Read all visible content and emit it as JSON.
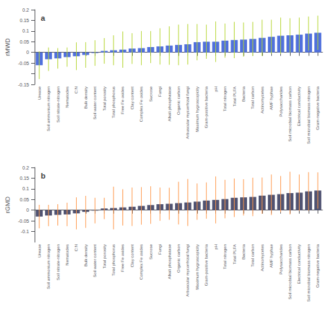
{
  "chart_data": [
    {
      "type": "bar",
      "title": "a",
      "ylabel": "rMWD",
      "categories": [
        "Urease",
        "Soil ammonium nitrogen",
        "Soil nitrate-nitrogen",
        "Nematodes",
        "C:N",
        "Bulk density",
        "Soil water content",
        "Total porosity",
        "Total phosphorus",
        "Free Fe oxides",
        "Clay content",
        "Complex Fe oxides",
        "Sucrose",
        "Fungi",
        "Alkali phosphatase",
        "Organic carbon",
        "Arbuscular mycorrhizal fungi",
        "Maximum hygroscopicity",
        "Gram-positive bacteria",
        "pH",
        "Total nitrogen",
        "Total PLFA",
        "Bacteria",
        "Total carbon",
        "Actinomycetes",
        "AMF hyphae",
        "Polysaccharides",
        "Soil microbial biomass carbon",
        "Electrical conductivity",
        "Soil microbial biomass nitrogen",
        "Gram-negative bacteria"
      ],
      "values": [
        -0.06,
        -0.032,
        -0.028,
        -0.022,
        -0.018,
        -0.012,
        -0.003,
        0.007,
        0.01,
        0.013,
        0.018,
        0.02,
        0.025,
        0.028,
        0.032,
        0.035,
        0.038,
        0.048,
        0.05,
        0.05,
        0.055,
        0.058,
        0.06,
        0.063,
        0.068,
        0.073,
        0.078,
        0.08,
        0.083,
        0.088,
        0.092
      ],
      "error_low": [
        0.065,
        0.055,
        0.048,
        0.045,
        0.065,
        0.06,
        0.06,
        0.06,
        0.07,
        0.085,
        0.072,
        0.08,
        0.075,
        0.085,
        0.09,
        0.095,
        0.095,
        0.085,
        0.08,
        0.095,
        0.08,
        0.085,
        0.08,
        0.08,
        0.085,
        0.08,
        0.085,
        0.08,
        0.08,
        0.08,
        0.08
      ],
      "error_high": [
        0.065,
        0.055,
        0.048,
        0.045,
        0.065,
        0.06,
        0.06,
        0.06,
        0.07,
        0.085,
        0.072,
        0.08,
        0.075,
        0.085,
        0.09,
        0.095,
        0.095,
        0.085,
        0.08,
        0.095,
        0.08,
        0.085,
        0.08,
        0.08,
        0.085,
        0.08,
        0.085,
        0.08,
        0.08,
        0.08,
        0.08
      ],
      "ylim": [
        -0.15,
        0.2
      ],
      "yticks": [
        -0.15,
        {
          "value": -0.1,
          "label": ""
        },
        -0.05,
        0,
        0.05,
        0.1,
        0.15,
        0.2
      ],
      "grid": false
    },
    {
      "type": "bar",
      "title": "b",
      "ylabel": "rGMD",
      "categories": [
        "Urease",
        "Soil ammonium nitrogen",
        "Soil nitrate-nitrogen",
        "Nematodes",
        "C:N",
        "Bulk density",
        "Soil water content",
        "Total porosity",
        "Total phosphorus",
        "Free Fe oxides",
        "Clay content",
        "Complex Fe oxides",
        "Sucrose",
        "Fungi",
        "Alkali phosphatase",
        "Organic carbon",
        "Arbuscular mycorrhizal fungi",
        "Maximum hygroscopicity",
        "Gram-positive bacteria",
        "pH",
        "Total nitrogen",
        "Total PLFA",
        "Bacteria",
        "Total carbon",
        "Actinomycetes",
        "AMF hyphae",
        "Polysaccharides",
        "Soil microbial biomass carbon",
        "Electrical conductivity",
        "Soil microbial biomass nitrogen",
        "Gram-negative bacteria"
      ],
      "values": [
        -0.03,
        -0.025,
        -0.022,
        -0.02,
        -0.015,
        -0.008,
        -0.002,
        0.008,
        0.01,
        0.013,
        0.016,
        0.02,
        0.024,
        0.028,
        0.03,
        0.033,
        0.036,
        0.04,
        0.045,
        0.048,
        0.052,
        0.058,
        0.06,
        0.062,
        0.068,
        0.072,
        0.075,
        0.08,
        0.082,
        0.088,
        0.092
      ],
      "error_low": [
        0.055,
        0.05,
        0.05,
        0.055,
        0.075,
        0.075,
        0.06,
        0.05,
        0.1,
        0.085,
        0.09,
        0.088,
        0.088,
        0.078,
        0.075,
        0.1,
        0.11,
        0.085,
        0.085,
        0.11,
        0.09,
        0.09,
        0.085,
        0.09,
        0.085,
        0.095,
        0.085,
        0.1,
        0.085,
        0.09,
        0.085
      ],
      "error_high": [
        0.055,
        0.05,
        0.05,
        0.055,
        0.075,
        0.075,
        0.06,
        0.05,
        0.1,
        0.085,
        0.09,
        0.088,
        0.088,
        0.078,
        0.075,
        0.1,
        0.11,
        0.085,
        0.085,
        0.11,
        0.09,
        0.09,
        0.085,
        0.09,
        0.085,
        0.095,
        0.085,
        0.1,
        0.085,
        0.09,
        0.085
      ],
      "ylim": [
        -0.15,
        0.2
      ],
      "yticks": [
        -0.1,
        -0.05,
        0,
        0.05,
        0.1,
        0.15,
        0.2
      ],
      "grid": false
    }
  ]
}
